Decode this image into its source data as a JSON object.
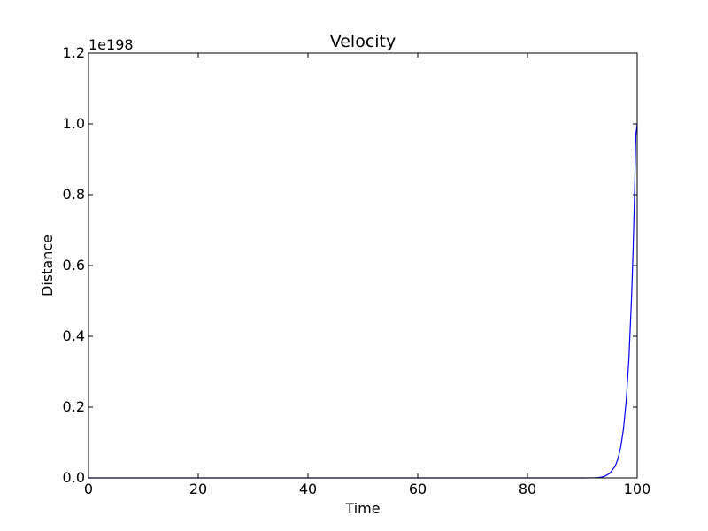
{
  "chart_data": {
    "type": "line",
    "title": "Velocity",
    "xlabel": "Time",
    "ylabel": "Distance",
    "y_offset_label": "1e198",
    "xlim": [
      0,
      100
    ],
    "ylim": [
      0,
      1.2
    ],
    "x_ticks": [
      0,
      20,
      40,
      60,
      80,
      100
    ],
    "x_tick_labels": [
      "0",
      "20",
      "40",
      "60",
      "80",
      "100"
    ],
    "y_ticks": [
      0,
      0.2,
      0.4,
      0.6,
      0.8,
      1.0,
      1.2
    ],
    "y_tick_labels": [
      "0.0",
      "0.2",
      "0.4",
      "0.6",
      "0.8",
      "1.0",
      "1.2"
    ],
    "grid": false,
    "series": [
      {
        "color": "#0000ff",
        "x": [
          0,
          10,
          20,
          30,
          40,
          50,
          60,
          70,
          80,
          90,
          92,
          93,
          94,
          95,
          96,
          96.5,
          97,
          97.5,
          98,
          98.5,
          99,
          99.25,
          99.5,
          99.75,
          100
        ],
        "y": [
          0,
          0,
          0,
          0,
          0,
          0,
          0,
          0,
          0,
          1e-05,
          0.0002,
          0.0009,
          0.0039,
          0.0127,
          0.0335,
          0.0544,
          0.0872,
          0.1387,
          0.218,
          0.339,
          0.5207,
          0.6414,
          0.7887,
          0.9685,
          1.0
        ]
      }
    ]
  }
}
